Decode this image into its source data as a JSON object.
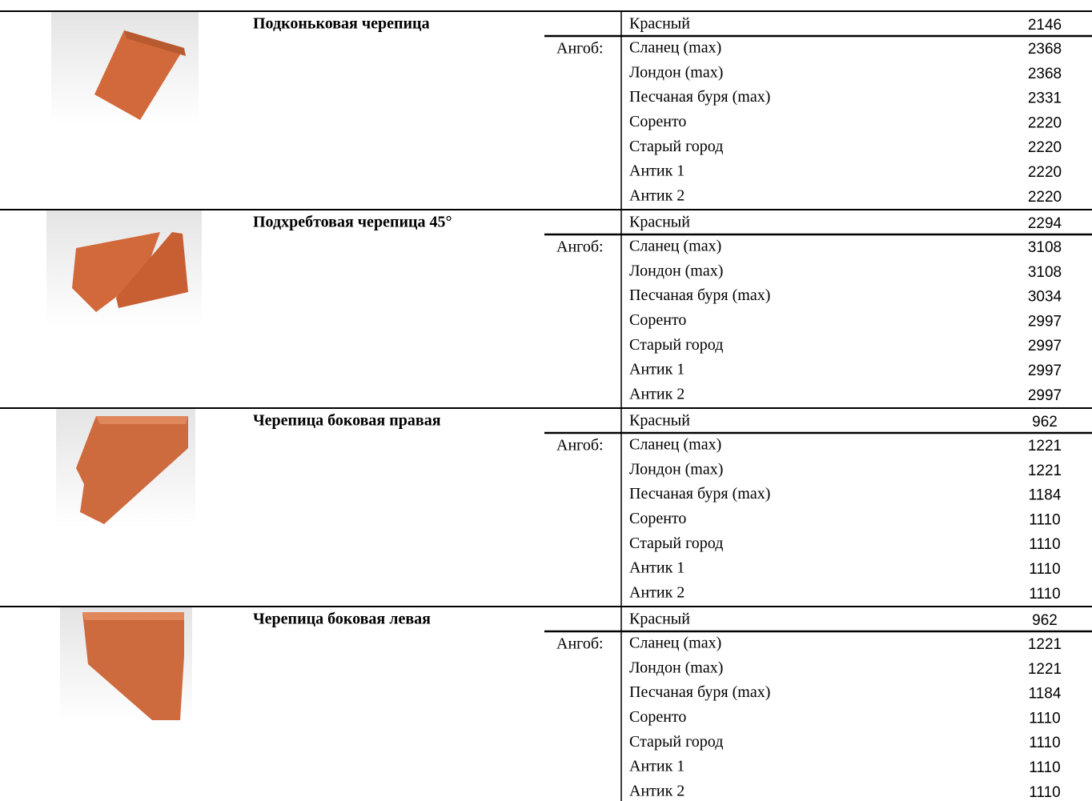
{
  "products": [
    {
      "name": "Подконьковая черепица",
      "engobe_label": "Ангоб:",
      "rows": [
        {
          "color": "Красный",
          "price": 2146
        },
        {
          "color": "Сланец (max)",
          "price": 2368
        },
        {
          "color": "Лондон (max)",
          "price": 2368
        },
        {
          "color": "Песчаная буря (max)",
          "price": 2331
        },
        {
          "color": "Соренто",
          "price": 2220
        },
        {
          "color": "Старый город",
          "price": 2220
        },
        {
          "color": "Антик 1",
          "price": 2220
        },
        {
          "color": "Антик 2",
          "price": 2220
        }
      ]
    },
    {
      "name": "Подхребтовая черепица 45°",
      "engobe_label": "Ангоб:",
      "rows": [
        {
          "color": "Красный",
          "price": 2294
        },
        {
          "color": "Сланец (max)",
          "price": 3108
        },
        {
          "color": "Лондон (max)",
          "price": 3108
        },
        {
          "color": "Песчаная буря (max)",
          "price": 3034
        },
        {
          "color": "Соренто",
          "price": 2997
        },
        {
          "color": "Старый город",
          "price": 2997
        },
        {
          "color": "Антик 1",
          "price": 2997
        },
        {
          "color": "Антик 2",
          "price": 2997
        }
      ]
    },
    {
      "name": "Черепица боковая правая",
      "engobe_label": "Ангоб:",
      "rows": [
        {
          "color": "Красный",
          "price": 962
        },
        {
          "color": "Сланец (max)",
          "price": 1221
        },
        {
          "color": "Лондон (max)",
          "price": 1221
        },
        {
          "color": "Песчаная буря (max)",
          "price": 1184
        },
        {
          "color": "Соренто",
          "price": 1110
        },
        {
          "color": "Старый город",
          "price": 1110
        },
        {
          "color": "Антик 1",
          "price": 1110
        },
        {
          "color": "Антик 2",
          "price": 1110
        }
      ]
    },
    {
      "name": "Черепица боковая левая",
      "engobe_label": "Ангоб:",
      "rows": [
        {
          "color": "Красный",
          "price": 962
        },
        {
          "color": "Сланец (max)",
          "price": 1221
        },
        {
          "color": "Лондон (max)",
          "price": 1221
        },
        {
          "color": "Песчаная буря (max)",
          "price": 1184
        },
        {
          "color": "Соренто",
          "price": 1110
        },
        {
          "color": "Старый город",
          "price": 1110
        },
        {
          "color": "Антик 1",
          "price": 1110
        },
        {
          "color": "Антик 2",
          "price": 1110
        }
      ]
    }
  ]
}
